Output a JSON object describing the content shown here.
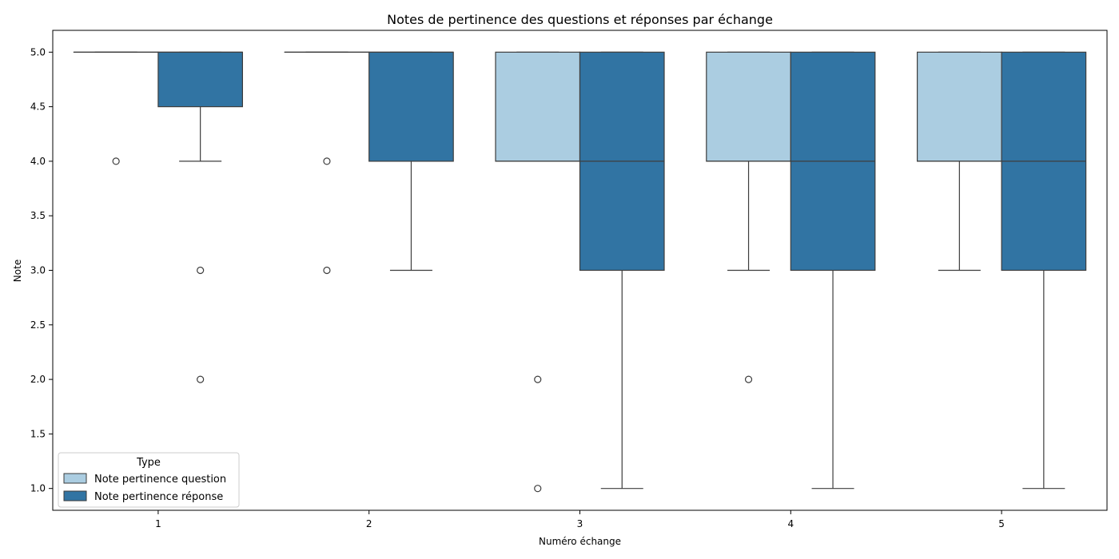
{
  "chart_data": {
    "type": "box",
    "title": "Notes de pertinence des questions et réponses par échange",
    "xlabel": "Numéro échange",
    "ylabel": "Note",
    "categories": [
      "1",
      "2",
      "3",
      "4",
      "5"
    ],
    "yticks": [
      "1.0",
      "1.5",
      "2.0",
      "2.5",
      "3.0",
      "3.5",
      "4.0",
      "4.5",
      "5.0"
    ],
    "ylim": [
      0.8,
      5.2
    ],
    "grid": false,
    "legend": {
      "title": "Type",
      "placement": "lower-left"
    },
    "series": [
      {
        "name": "Note pertinence question",
        "color": "#abcde1",
        "boxes": [
          {
            "q1": 5,
            "median": 5,
            "q3": 5,
            "whisker_low": 5,
            "whisker_high": 5,
            "outliers": [
              4
            ]
          },
          {
            "q1": 5,
            "median": 5,
            "q3": 5,
            "whisker_low": 5,
            "whisker_high": 5,
            "outliers": [
              4,
              3
            ]
          },
          {
            "q1": 4,
            "median": 4,
            "q3": 5,
            "whisker_low": 4,
            "whisker_high": 5,
            "outliers": [
              2,
              1
            ]
          },
          {
            "q1": 4,
            "median": 4,
            "q3": 5,
            "whisker_low": 3,
            "whisker_high": 5,
            "outliers": [
              2
            ]
          },
          {
            "q1": 4,
            "median": 4,
            "q3": 5,
            "whisker_low": 3,
            "whisker_high": 5,
            "outliers": []
          }
        ]
      },
      {
        "name": "Note pertinence réponse",
        "color": "#3174a3",
        "boxes": [
          {
            "q1": 4.5,
            "median": 5,
            "q3": 5,
            "whisker_low": 4,
            "whisker_high": 5,
            "outliers": [
              3,
              2
            ]
          },
          {
            "q1": 4,
            "median": 5,
            "q3": 5,
            "whisker_low": 3,
            "whisker_high": 5,
            "outliers": []
          },
          {
            "q1": 3,
            "median": 4,
            "q3": 5,
            "whisker_low": 1,
            "whisker_high": 5,
            "outliers": []
          },
          {
            "q1": 3,
            "median": 4,
            "q3": 5,
            "whisker_low": 1,
            "whisker_high": 5,
            "outliers": []
          },
          {
            "q1": 3,
            "median": 4,
            "q3": 5,
            "whisker_low": 1,
            "whisker_high": 5,
            "outliers": []
          }
        ]
      }
    ]
  }
}
